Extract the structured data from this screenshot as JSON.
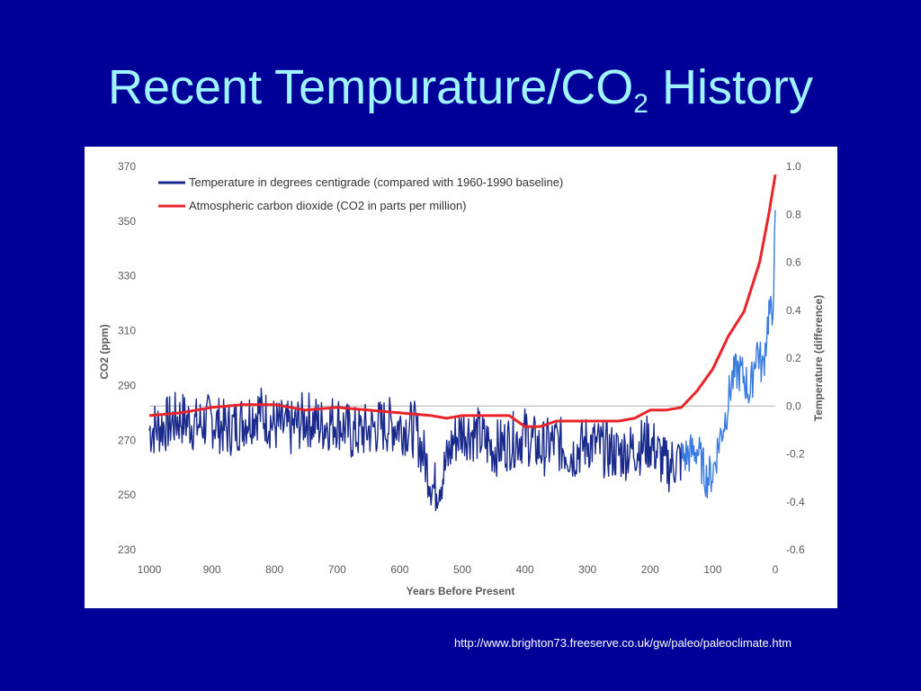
{
  "slide": {
    "title_main": "Recent Tempurature/CO",
    "title_sub": "2",
    "title_end": " History",
    "source_url": "http://www.brighton73.freeserve.co.uk/gw/paleo/paleoclimate.htm"
  },
  "colors": {
    "background": "#000099",
    "title": "#9ff5ff",
    "co2": "#e8242a",
    "temp_old": "#1a2a8c",
    "temp_recent": "#3a7be0",
    "axis_text": "#5a5a5a"
  },
  "chart_data": {
    "type": "line",
    "xlabel": "Years Before Present",
    "ylabel": "CO2 (ppm)",
    "y2label": "Temperature (difference)",
    "xlim": [
      1000,
      0
    ],
    "x_ticks": [
      1000,
      900,
      800,
      700,
      600,
      500,
      400,
      300,
      200,
      100,
      0
    ],
    "ylim": [
      230,
      370
    ],
    "y_ticks": [
      230,
      250,
      270,
      290,
      310,
      330,
      350,
      370
    ],
    "y2lim": [
      -0.6,
      1.0
    ],
    "y2_ticks": [
      -0.6,
      -0.4,
      -0.2,
      0.0,
      0.2,
      0.4,
      0.6,
      0.8,
      1.0
    ],
    "y2_tick_labels": [
      "-0.6",
      "-0.4",
      "-0.2",
      "0.0",
      "0.2",
      "0.4",
      "0.6",
      "0.8",
      "1.0"
    ],
    "legend_position": "top-left",
    "series": [
      {
        "name": "Temperature in degrees centigrade (compared with 1960-1990 baseline)",
        "axis": "right",
        "x": [
          1000,
          975,
          950,
          925,
          900,
          875,
          850,
          825,
          800,
          775,
          750,
          725,
          700,
          675,
          650,
          625,
          600,
          575,
          560,
          545,
          530,
          515,
          500,
          475,
          450,
          425,
          400,
          375,
          350,
          325,
          300,
          275,
          250,
          225,
          200,
          175,
          150,
          125,
          110,
          100,
          90,
          80,
          70,
          60,
          50,
          40,
          30,
          20,
          10,
          5,
          0
        ],
        "y": [
          -0.1,
          -0.08,
          -0.05,
          -0.08,
          -0.06,
          -0.1,
          -0.06,
          -0.02,
          -0.08,
          -0.1,
          -0.05,
          -0.08,
          -0.06,
          -0.12,
          -0.1,
          -0.08,
          -0.08,
          -0.1,
          -0.22,
          -0.35,
          -0.28,
          -0.15,
          -0.1,
          -0.12,
          -0.18,
          -0.15,
          -0.12,
          -0.18,
          -0.15,
          -0.2,
          -0.15,
          -0.18,
          -0.2,
          -0.18,
          -0.15,
          -0.25,
          -0.22,
          -0.18,
          -0.3,
          -0.28,
          -0.15,
          -0.05,
          0.1,
          0.15,
          0.12,
          0.05,
          0.25,
          0.15,
          0.4,
          0.35,
          0.75
        ]
      },
      {
        "name": "Atmospheric carbon dioxide (CO2 in parts per million)",
        "axis": "left",
        "x": [
          1000,
          950,
          900,
          850,
          800,
          750,
          700,
          650,
          600,
          550,
          525,
          500,
          475,
          450,
          425,
          400,
          375,
          350,
          325,
          300,
          275,
          250,
          225,
          200,
          175,
          150,
          125,
          100,
          75,
          50,
          25,
          10,
          0
        ],
        "y": [
          279,
          280,
          282,
          283,
          283,
          281,
          282,
          281,
          280,
          279,
          278,
          279,
          279,
          279,
          279,
          275,
          275,
          277,
          277,
          277,
          277,
          277,
          278,
          281,
          281,
          282,
          288,
          296,
          308,
          317,
          335,
          353,
          367
        ]
      }
    ]
  }
}
